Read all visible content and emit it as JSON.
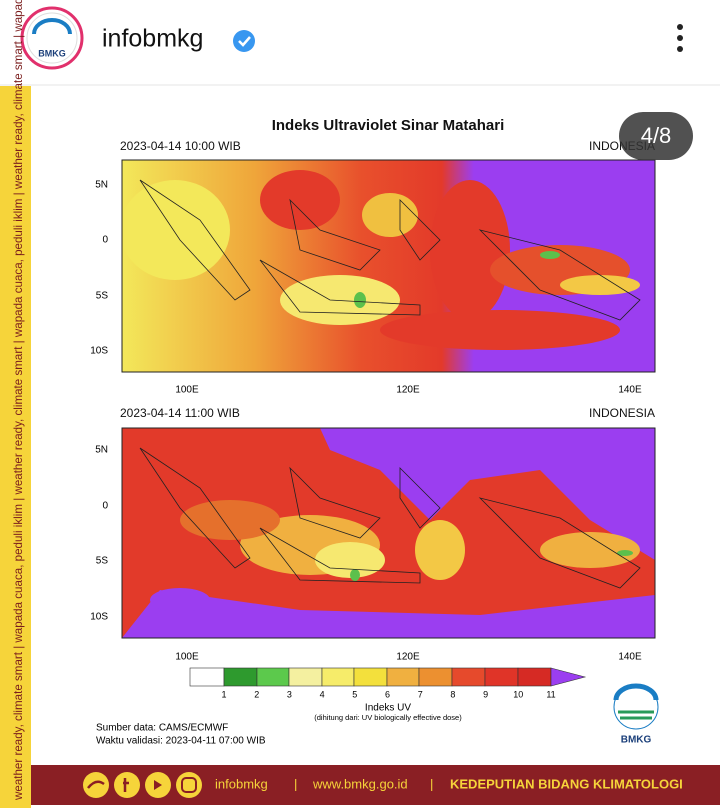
{
  "header": {
    "avatar_label": "BMKG",
    "username": "infobmkg"
  },
  "counter": "4/8",
  "side_text": "weather ready, climate smart | wapada cuaca, peduli iklim | weather ready, climate smart | wapada cuaca, peduli iklim | weather ready, climate smart | wapada cuaca, peduli iklim",
  "figure": {
    "title": "Indeks Ultraviolet Sinar Matahari",
    "panels": [
      {
        "timestamp": "2023-04-14  10:00 WIB",
        "region": "INDONESIA",
        "lat_labels": [
          "5N",
          "0",
          "5S",
          "10S"
        ],
        "lon_labels": [
          "100E",
          "120E",
          "140E"
        ]
      },
      {
        "timestamp": "2023-04-14  11:00 WIB",
        "region": "INDONESIA",
        "lat_labels": [
          "5N",
          "0",
          "5S",
          "10S"
        ],
        "lon_labels": [
          "100E",
          "120E",
          "140E"
        ]
      }
    ],
    "colorbar": {
      "labels": [
        "1",
        "2",
        "3",
        "4",
        "5",
        "6",
        "7",
        "8",
        "9",
        "10",
        "11"
      ],
      "title": "Indeks UV",
      "note": "(dihitung dari: UV biologically effective dose)"
    },
    "source": "Sumber data: CAMS/ECMWF",
    "validation": "Waktu validasi: 2023-04-11 07:00 WIB",
    "logo_label": "BMKG"
  },
  "footer": {
    "handle": "infobmkg",
    "separator": "|",
    "website": "www.bmkg.go.id",
    "department": "KEDEPUTIAN BIDANG KLIMATOLOGI"
  }
}
